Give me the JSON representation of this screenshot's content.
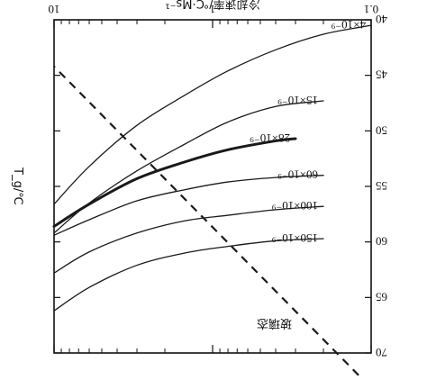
{
  "chart_data": {
    "type": "line",
    "orientation": "rotated-180",
    "xlabel": "冷却速率/℃·Ms⁻¹",
    "ylabel": "T_g/℃",
    "x_scale": "log",
    "xlim": [
      0.1,
      10
    ],
    "x_ticks": [
      {
        "value": 0.1,
        "label": "0.1"
      },
      {
        "value": 1,
        "label": "1"
      },
      {
        "value": 10,
        "label": "10"
      }
    ],
    "ylim": [
      40,
      70
    ],
    "y_ticks": [
      {
        "value": 40,
        "label": "40"
      },
      {
        "value": 45,
        "label": "45"
      },
      {
        "value": 50,
        "label": "50"
      },
      {
        "value": 55,
        "label": "55"
      },
      {
        "value": 60,
        "label": "60"
      },
      {
        "value": 65,
        "label": "65"
      },
      {
        "value": 70,
        "label": "70"
      }
    ],
    "grid": false,
    "series": [
      {
        "name": "4×10⁻⁹",
        "emphasis": false,
        "points": [
          [
            10,
            56.6
          ],
          [
            6,
            53.2
          ],
          [
            3,
            49.5
          ],
          [
            1.5,
            46.8
          ],
          [
            0.8,
            44.6
          ],
          [
            0.4,
            42.7
          ],
          [
            0.2,
            41.3
          ],
          [
            0.1,
            40.5
          ]
        ]
      },
      {
        "name": "15×10⁻⁹",
        "emphasis": false,
        "points": [
          [
            10,
            59.2
          ],
          [
            6,
            56.5
          ],
          [
            3,
            53.6
          ],
          [
            1.5,
            51.2
          ],
          [
            0.8,
            49.2
          ],
          [
            0.4,
            47.8
          ],
          [
            0.2,
            47.3
          ]
        ]
      },
      {
        "name": "28×10⁻⁹",
        "emphasis": true,
        "points": [
          [
            10,
            58.6
          ],
          [
            6,
            56.6
          ],
          [
            3,
            54.3
          ],
          [
            1.5,
            52.8
          ],
          [
            0.8,
            51.7
          ],
          [
            0.4,
            50.9
          ],
          [
            0.3,
            50.7
          ]
        ]
      },
      {
        "name": "60×10⁻⁹",
        "emphasis": false,
        "points": [
          [
            10,
            59.4
          ],
          [
            6,
            58.0
          ],
          [
            3,
            56.3
          ],
          [
            1.5,
            55.3
          ],
          [
            0.8,
            54.6
          ],
          [
            0.4,
            54.2
          ],
          [
            0.2,
            54.0
          ]
        ]
      },
      {
        "name": "100×10⁻⁹",
        "emphasis": false,
        "points": [
          [
            10,
            62.8
          ],
          [
            6,
            60.9
          ],
          [
            3,
            59.2
          ],
          [
            1.5,
            58.1
          ],
          [
            0.8,
            57.6
          ],
          [
            0.4,
            57.1
          ],
          [
            0.2,
            56.8
          ]
        ]
      },
      {
        "name": "150×10⁻⁹",
        "emphasis": false,
        "points": [
          [
            10,
            66.2
          ],
          [
            6,
            64.1
          ],
          [
            3,
            62.1
          ],
          [
            1.5,
            61.0
          ],
          [
            0.8,
            60.4
          ],
          [
            0.4,
            59.9
          ],
          [
            0.2,
            59.7
          ]
        ]
      }
    ],
    "reference_line": {
      "label": "玻璃态",
      "style": "dashed",
      "points": [
        [
          0.12,
          72.0
        ],
        [
          10,
          44.2
        ]
      ]
    },
    "colors": {
      "axis": "#111111",
      "line": "#1a1a1a",
      "background": "#ffffff"
    }
  }
}
